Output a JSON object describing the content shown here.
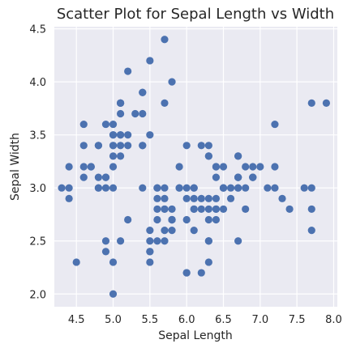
{
  "chart_data": {
    "type": "scatter",
    "title": "Scatter Plot for Sepal Length vs Width",
    "xlabel": "Sepal Length",
    "ylabel": "Sepal Width",
    "xlim": [
      4.2,
      8.05
    ],
    "ylim": [
      1.88,
      4.52
    ],
    "xticks": [
      4.5,
      5.0,
      5.5,
      6.0,
      6.5,
      7.0,
      7.5,
      8.0
    ],
    "xtick_labels": [
      "4.5",
      "5.0",
      "5.5",
      "6.0",
      "6.5",
      "7.0",
      "7.5",
      "8.0"
    ],
    "yticks": [
      2.0,
      2.5,
      3.0,
      3.5,
      4.0,
      4.5
    ],
    "ytick_labels": [
      "2.0",
      "2.5",
      "3.0",
      "3.5",
      "4.0",
      "4.5"
    ],
    "grid": true,
    "colors": {
      "background": "#eaeaf2",
      "point": "#4c72b0"
    },
    "points": [
      [
        5.1,
        3.5
      ],
      [
        4.9,
        3.0
      ],
      [
        4.7,
        3.2
      ],
      [
        4.6,
        3.1
      ],
      [
        5.0,
        3.6
      ],
      [
        5.4,
        3.9
      ],
      [
        4.6,
        3.4
      ],
      [
        5.0,
        3.4
      ],
      [
        4.4,
        2.9
      ],
      [
        4.9,
        3.1
      ],
      [
        5.4,
        3.7
      ],
      [
        4.8,
        3.4
      ],
      [
        4.8,
        3.0
      ],
      [
        4.3,
        3.0
      ],
      [
        5.8,
        4.0
      ],
      [
        5.7,
        4.4
      ],
      [
        5.4,
        3.9
      ],
      [
        5.1,
        3.5
      ],
      [
        5.7,
        3.8
      ],
      [
        5.1,
        3.8
      ],
      [
        5.4,
        3.4
      ],
      [
        5.1,
        3.7
      ],
      [
        4.6,
        3.6
      ],
      [
        5.1,
        3.3
      ],
      [
        4.8,
        3.4
      ],
      [
        5.0,
        3.0
      ],
      [
        5.0,
        3.4
      ],
      [
        5.2,
        3.5
      ],
      [
        5.2,
        3.4
      ],
      [
        4.7,
        3.2
      ],
      [
        4.8,
        3.1
      ],
      [
        5.4,
        3.4
      ],
      [
        5.2,
        4.1
      ],
      [
        5.5,
        4.2
      ],
      [
        4.9,
        3.1
      ],
      [
        5.0,
        3.2
      ],
      [
        5.5,
        3.5
      ],
      [
        4.9,
        3.6
      ],
      [
        4.4,
        3.0
      ],
      [
        5.1,
        3.4
      ],
      [
        5.0,
        3.5
      ],
      [
        4.5,
        2.3
      ],
      [
        4.4,
        3.2
      ],
      [
        5.0,
        3.5
      ],
      [
        5.1,
        3.8
      ],
      [
        4.8,
        3.0
      ],
      [
        5.1,
        3.8
      ],
      [
        4.6,
        3.2
      ],
      [
        5.3,
        3.7
      ],
      [
        5.0,
        3.3
      ],
      [
        7.0,
        3.2
      ],
      [
        6.4,
        3.2
      ],
      [
        6.9,
        3.1
      ],
      [
        5.5,
        2.3
      ],
      [
        6.5,
        2.8
      ],
      [
        5.7,
        2.8
      ],
      [
        6.3,
        3.3
      ],
      [
        4.9,
        2.4
      ],
      [
        6.6,
        2.9
      ],
      [
        5.2,
        2.7
      ],
      [
        5.0,
        2.0
      ],
      [
        5.9,
        3.0
      ],
      [
        6.0,
        2.2
      ],
      [
        6.1,
        2.9
      ],
      [
        5.6,
        2.9
      ],
      [
        6.7,
        3.1
      ],
      [
        5.6,
        3.0
      ],
      [
        5.8,
        2.7
      ],
      [
        6.2,
        2.2
      ],
      [
        5.6,
        2.5
      ],
      [
        5.9,
        3.2
      ],
      [
        6.1,
        2.8
      ],
      [
        6.3,
        2.5
      ],
      [
        6.1,
        2.8
      ],
      [
        6.4,
        2.9
      ],
      [
        6.6,
        3.0
      ],
      [
        6.8,
        2.8
      ],
      [
        6.7,
        3.0
      ],
      [
        6.0,
        2.9
      ],
      [
        5.7,
        2.6
      ],
      [
        5.5,
        2.4
      ],
      [
        5.5,
        2.4
      ],
      [
        5.8,
        2.7
      ],
      [
        6.0,
        2.7
      ],
      [
        5.4,
        3.0
      ],
      [
        6.0,
        3.4
      ],
      [
        6.7,
        3.1
      ],
      [
        6.3,
        2.3
      ],
      [
        5.6,
        3.0
      ],
      [
        5.5,
        2.5
      ],
      [
        5.5,
        2.6
      ],
      [
        6.1,
        3.0
      ],
      [
        5.8,
        2.6
      ],
      [
        5.0,
        2.3
      ],
      [
        5.6,
        2.7
      ],
      [
        5.7,
        3.0
      ],
      [
        5.7,
        2.9
      ],
      [
        6.2,
        2.9
      ],
      [
        5.1,
        2.5
      ],
      [
        5.7,
        2.8
      ],
      [
        6.3,
        3.3
      ],
      [
        5.8,
        2.7
      ],
      [
        7.1,
        3.0
      ],
      [
        6.3,
        2.9
      ],
      [
        6.5,
        3.0
      ],
      [
        7.6,
        3.0
      ],
      [
        4.9,
        2.5
      ],
      [
        7.3,
        2.9
      ],
      [
        6.7,
        2.5
      ],
      [
        7.2,
        3.6
      ],
      [
        6.5,
        3.2
      ],
      [
        6.4,
        2.7
      ],
      [
        6.8,
        3.0
      ],
      [
        5.7,
        2.5
      ],
      [
        5.8,
        2.8
      ],
      [
        6.4,
        3.2
      ],
      [
        6.5,
        3.0
      ],
      [
        7.7,
        3.8
      ],
      [
        7.7,
        2.6
      ],
      [
        6.0,
        2.2
      ],
      [
        6.9,
        3.2
      ],
      [
        5.6,
        2.8
      ],
      [
        7.7,
        2.8
      ],
      [
        6.3,
        2.7
      ],
      [
        6.7,
        3.3
      ],
      [
        7.2,
        3.2
      ],
      [
        6.2,
        2.8
      ],
      [
        6.1,
        3.0
      ],
      [
        6.4,
        2.8
      ],
      [
        7.2,
        3.0
      ],
      [
        7.4,
        2.8
      ],
      [
        7.9,
        3.8
      ],
      [
        6.4,
        2.8
      ],
      [
        6.3,
        2.8
      ],
      [
        6.1,
        2.6
      ],
      [
        7.7,
        3.0
      ],
      [
        6.3,
        3.4
      ],
      [
        6.4,
        3.1
      ],
      [
        6.0,
        3.0
      ],
      [
        6.9,
        3.1
      ],
      [
        6.7,
        3.1
      ],
      [
        6.9,
        3.1
      ],
      [
        5.8,
        2.7
      ],
      [
        6.8,
        3.2
      ],
      [
        6.7,
        3.3
      ],
      [
        6.7,
        3.0
      ],
      [
        6.3,
        2.5
      ],
      [
        6.5,
        3.0
      ],
      [
        6.2,
        3.4
      ],
      [
        5.9,
        3.0
      ]
    ]
  }
}
